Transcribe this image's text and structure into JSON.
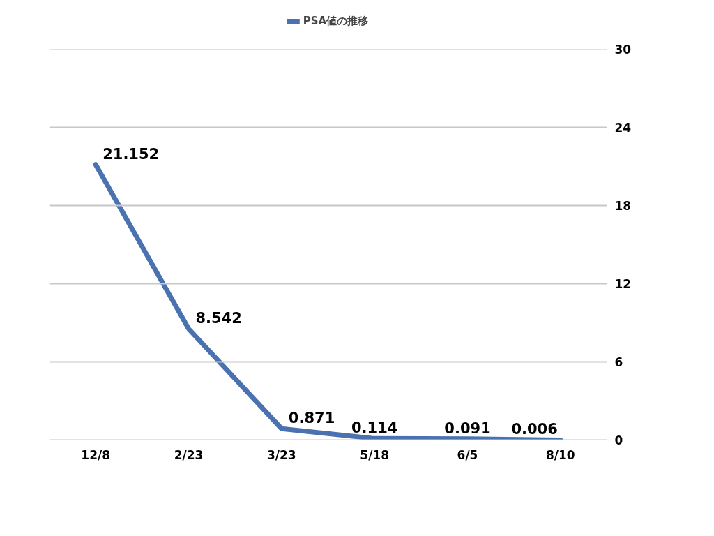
{
  "chart_data": {
    "type": "line",
    "categories": [
      "12/8",
      "2/23",
      "3/23",
      "5/18",
      "6/5",
      "8/10"
    ],
    "series": [
      {
        "name": "PSA値の推移",
        "color": "#4a72b0",
        "values": [
          21.152,
          8.542,
          0.871,
          0.114,
          0.091,
          0.006
        ]
      }
    ],
    "ylim": [
      0,
      30
    ],
    "yticks": [
      0,
      6,
      12,
      18,
      24,
      30
    ],
    "grid": "y",
    "legend": "top",
    "data_labels": true
  }
}
